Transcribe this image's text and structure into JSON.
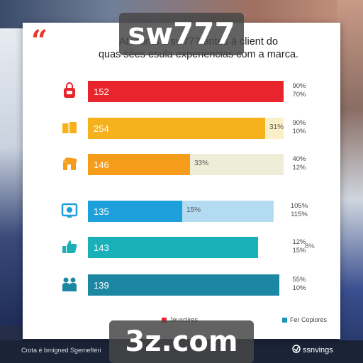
{
  "headline": {
    "line1": "Atesonts à sw777 entes à client do",
    "line2": "quas sées esula experiencias com a marca."
  },
  "quote_mark": "“",
  "chart_data": {
    "type": "bar",
    "orientation": "horizontal",
    "title": "",
    "xlim": [
      0,
      280
    ],
    "rows": [
      {
        "icon": "bag-icon",
        "value": 152,
        "display": "152",
        "mid_label": "",
        "pct_top": "90%",
        "pct_bottom": "70%",
        "color": "#e8252c",
        "track": "#e8252c"
      },
      {
        "icon": "boxes-icon",
        "value": 254,
        "display": "254",
        "mid_label": "31%",
        "pct_top": "90%",
        "pct_bottom": "10%",
        "color": "#f5b21c",
        "track": "#fbefc8"
      },
      {
        "icon": "box-open-icon",
        "value": 146,
        "display": "146",
        "mid_label": "33%",
        "pct_top": "40%",
        "pct_bottom": "12%",
        "color": "#f59c1a",
        "track": "#eeeed8"
      },
      {
        "icon": "monitor-icon",
        "value": 135,
        "display": "135",
        "mid_label": "15%",
        "pct_top": "105%",
        "pct_bottom": "115%",
        "color": "#1ea0dc",
        "track": "#b3dcf3"
      },
      {
        "icon": "thumbs-up-icon",
        "value": 143,
        "display": "143",
        "mid_label": "",
        "pct_top": "12%",
        "pct_bottom": "15%",
        "color": "#1ab0b8",
        "track": "#1ab0b8"
      },
      {
        "icon": "people-icon",
        "value": 139,
        "display": "139",
        "mid_label": "",
        "pct_top": "55%",
        "pct_bottom": "10%",
        "color": "#1c87a3",
        "track": "#1c87a3"
      }
    ],
    "extra_labels": {
      "row5_right": "8%"
    },
    "legend": [
      {
        "label": "Jeuxclires",
        "color": "#e8252c",
        "position": "bottom-left"
      },
      {
        "label": "Fer Copiores",
        "color": "#1c96b8",
        "position": "bottom-right"
      }
    ]
  },
  "footer": {
    "left_text": "Crota é bmigned Sgemeftéri",
    "right_text": "ssnvings"
  },
  "watermarks": {
    "top": "sw777",
    "bottom": "3z.com"
  }
}
